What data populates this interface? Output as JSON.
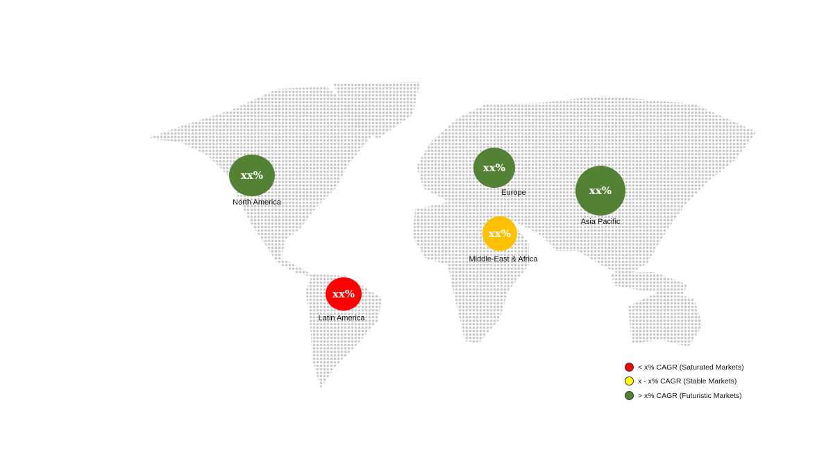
{
  "colors": {
    "saturated": "#FF0000",
    "stable": "#FFC000",
    "futuristic": "#548235",
    "legend_stable": "#FFFF00",
    "land_dots": "#C8C8C8"
  },
  "regions": [
    {
      "name": "North America",
      "value": "xx%",
      "category": "futuristic"
    },
    {
      "name": "Europe",
      "value": "xx%",
      "category": "futuristic"
    },
    {
      "name": "Asia Pacific",
      "value": "xx%",
      "category": "futuristic"
    },
    {
      "name": "Middle-East & Africa",
      "value": "xx%",
      "category": "stable"
    },
    {
      "name": "Latin America",
      "value": "xx%",
      "category": "saturated"
    }
  ],
  "legend": [
    {
      "label": "< x% CAGR (Saturated Markets)",
      "category": "saturated"
    },
    {
      "label": "x - x% CAGR (Stable Markets)",
      "category": "stable"
    },
    {
      "label": "> x% CAGR (Futuristic Markets)",
      "category": "futuristic"
    }
  ]
}
